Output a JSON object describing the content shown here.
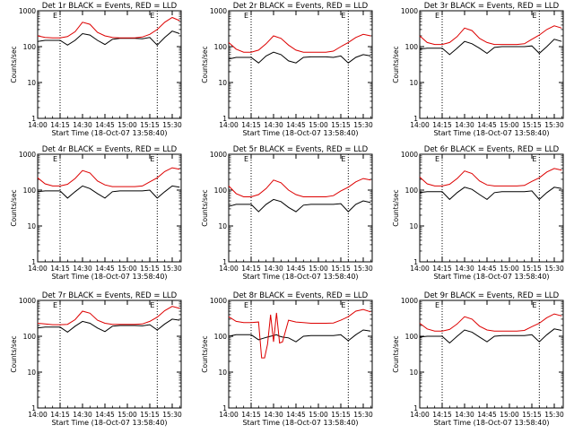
{
  "colors": {
    "events": "#000000",
    "lld": "#dd0000",
    "axes": "#000000",
    "background": "#ffffff"
  },
  "chart_data": [
    {
      "type": "line",
      "title": "Det 1r BLACK = Events, RED = LLD",
      "xlabel": "Start Time (18-Oct-07 13:58:40)",
      "ylabel": "Counts/sec",
      "yscale": "log",
      "ylim": [
        1,
        1000
      ],
      "ytick_labels": [
        "1",
        "10",
        "100",
        "1000"
      ],
      "xlim": [
        "14:00",
        "15:36"
      ],
      "xtick_labels": [
        "14:00",
        "14:15",
        "14:30",
        "14:45",
        "15:00",
        "15:15",
        "15:30"
      ],
      "markers": [
        {
          "time": "14:15",
          "label": "E"
        },
        {
          "time": "15:20",
          "label": "E"
        }
      ],
      "x": [
        "14:00",
        "14:05",
        "14:10",
        "14:15",
        "14:20",
        "14:25",
        "14:30",
        "14:35",
        "14:40",
        "14:45",
        "14:50",
        "14:55",
        "15:00",
        "15:05",
        "15:10",
        "15:15",
        "15:20",
        "15:25",
        "15:30",
        "15:35"
      ],
      "series": [
        {
          "name": "Events",
          "values": [
            140,
            150,
            150,
            150,
            110,
            150,
            230,
            210,
            150,
            115,
            160,
            170,
            170,
            170,
            165,
            180,
            110,
            180,
            270,
            230
          ]
        },
        {
          "name": "LLD",
          "values": [
            200,
            180,
            175,
            175,
            190,
            260,
            480,
            420,
            250,
            200,
            180,
            175,
            175,
            175,
            185,
            220,
            300,
            480,
            650,
            530
          ]
        }
      ]
    },
    {
      "type": "line",
      "title": "Det 2r BLACK = Events, RED = LLD",
      "xlabel": "Start Time (18-Oct-07 13:58:40)",
      "ylabel": "Counts/sec",
      "yscale": "log",
      "ylim": [
        1,
        1000
      ],
      "ytick_labels": [
        "1",
        "10",
        "100",
        "1000"
      ],
      "xlim": [
        "14:00",
        "15:36"
      ],
      "xtick_labels": [
        "14:00",
        "14:15",
        "14:30",
        "14:45",
        "15:00",
        "15:15",
        "15:30"
      ],
      "markers": [
        {
          "time": "14:15",
          "label": "E"
        },
        {
          "time": "15:20",
          "label": "E"
        }
      ],
      "x": [
        "14:00",
        "14:05",
        "14:10",
        "14:15",
        "14:20",
        "14:25",
        "14:30",
        "14:35",
        "14:40",
        "14:45",
        "14:50",
        "14:55",
        "15:00",
        "15:05",
        "15:10",
        "15:15",
        "15:20",
        "15:25",
        "15:30",
        "15:35"
      ],
      "series": [
        {
          "name": "Events",
          "values": [
            45,
            50,
            50,
            50,
            35,
            55,
            70,
            60,
            40,
            35,
            50,
            52,
            52,
            52,
            50,
            55,
            35,
            50,
            60,
            55
          ]
        },
        {
          "name": "LLD",
          "values": [
            130,
            85,
            70,
            70,
            80,
            120,
            200,
            170,
            110,
            80,
            70,
            70,
            70,
            70,
            75,
            100,
            130,
            180,
            220,
            200
          ]
        }
      ]
    },
    {
      "type": "line",
      "title": "Det 3r BLACK = Events, RED = LLD",
      "xlabel": "Start Time (18-Oct-07 13:58:40)",
      "ylabel": "Counts/sec",
      "yscale": "log",
      "ylim": [
        1,
        1000
      ],
      "ytick_labels": [
        "1",
        "10",
        "100",
        "1000"
      ],
      "xlim": [
        "14:00",
        "15:36"
      ],
      "xtick_labels": [
        "14:00",
        "14:15",
        "14:30",
        "14:45",
        "15:00",
        "15:15",
        "15:30"
      ],
      "markers": [
        {
          "time": "14:15",
          "label": "E"
        },
        {
          "time": "15:20",
          "label": "E"
        }
      ],
      "x": [
        "14:00",
        "14:05",
        "14:10",
        "14:15",
        "14:20",
        "14:25",
        "14:30",
        "14:35",
        "14:40",
        "14:45",
        "14:50",
        "14:55",
        "15:00",
        "15:05",
        "15:10",
        "15:15",
        "15:20",
        "15:25",
        "15:30",
        "15:35"
      ],
      "series": [
        {
          "name": "Events",
          "values": [
            85,
            90,
            90,
            90,
            60,
            90,
            140,
            120,
            90,
            65,
            95,
            100,
            100,
            100,
            100,
            105,
            65,
            100,
            160,
            140
          ]
        },
        {
          "name": "LLD",
          "values": [
            200,
            130,
            115,
            115,
            130,
            190,
            330,
            280,
            170,
            130,
            115,
            115,
            115,
            115,
            120,
            160,
            210,
            300,
            380,
            330
          ]
        }
      ]
    },
    {
      "type": "line",
      "title": "Det 4r BLACK = Events, RED = LLD",
      "xlabel": "Start Time (18-Oct-07 13:58:40)",
      "ylabel": "Counts/sec",
      "yscale": "log",
      "ylim": [
        1,
        1000
      ],
      "ytick_labels": [
        "1",
        "10",
        "100",
        "1000"
      ],
      "xlim": [
        "14:00",
        "15:36"
      ],
      "xtick_labels": [
        "14:00",
        "14:15",
        "14:30",
        "14:45",
        "15:00",
        "15:15",
        "15:30"
      ],
      "markers": [
        {
          "time": "14:15",
          "label": "E"
        },
        {
          "time": "15:20",
          "label": "E"
        }
      ],
      "x": [
        "14:00",
        "14:05",
        "14:10",
        "14:15",
        "14:20",
        "14:25",
        "14:30",
        "14:35",
        "14:40",
        "14:45",
        "14:50",
        "14:55",
        "15:00",
        "15:05",
        "15:10",
        "15:15",
        "15:20",
        "15:25",
        "15:30",
        "15:35"
      ],
      "series": [
        {
          "name": "Events",
          "values": [
            90,
            95,
            95,
            95,
            60,
            90,
            130,
            110,
            80,
            60,
            90,
            95,
            95,
            95,
            95,
            100,
            60,
            90,
            130,
            120
          ]
        },
        {
          "name": "LLD",
          "values": [
            220,
            150,
            130,
            130,
            145,
            210,
            350,
            300,
            180,
            140,
            125,
            125,
            125,
            125,
            130,
            170,
            220,
            330,
            420,
            380
          ]
        }
      ]
    },
    {
      "type": "line",
      "title": "Det 5r BLACK = Events, RED = LLD",
      "xlabel": "Start Time (18-Oct-07 13:58:40)",
      "ylabel": "Counts/sec",
      "yscale": "log",
      "ylim": [
        1,
        1000
      ],
      "ytick_labels": [
        "1",
        "10",
        "100",
        "1000"
      ],
      "xlim": [
        "14:00",
        "15:36"
      ],
      "xtick_labels": [
        "14:00",
        "14:15",
        "14:30",
        "14:45",
        "15:00",
        "15:15",
        "15:30"
      ],
      "markers": [
        {
          "time": "14:15",
          "label": "E"
        },
        {
          "time": "15:20",
          "label": "E"
        }
      ],
      "x": [
        "14:00",
        "14:05",
        "14:10",
        "14:15",
        "14:20",
        "14:25",
        "14:30",
        "14:35",
        "14:40",
        "14:45",
        "14:50",
        "14:55",
        "15:00",
        "15:05",
        "15:10",
        "15:15",
        "15:20",
        "15:25",
        "15:30",
        "15:35"
      ],
      "series": [
        {
          "name": "Events",
          "values": [
            35,
            40,
            40,
            40,
            25,
            40,
            55,
            48,
            33,
            25,
            38,
            40,
            40,
            40,
            40,
            42,
            25,
            40,
            50,
            45
          ]
        },
        {
          "name": "LLD",
          "values": [
            130,
            80,
            65,
            65,
            75,
            110,
            190,
            160,
            100,
            75,
            65,
            65,
            65,
            65,
            70,
            95,
            120,
            170,
            210,
            190
          ]
        }
      ]
    },
    {
      "type": "line",
      "title": "Det 6r BLACK = Events, RED = LLD",
      "xlabel": "Start Time (18-Oct-07 13:58:40)",
      "ylabel": "Counts/sec",
      "yscale": "log",
      "ylim": [
        1,
        1000
      ],
      "ytick_labels": [
        "1",
        "10",
        "100",
        "1000"
      ],
      "xlim": [
        "14:00",
        "15:36"
      ],
      "xtick_labels": [
        "14:00",
        "14:15",
        "14:30",
        "14:45",
        "15:00",
        "15:15",
        "15:30"
      ],
      "markers": [
        {
          "time": "14:15",
          "label": "E"
        },
        {
          "time": "15:20",
          "label": "E"
        }
      ],
      "x": [
        "14:00",
        "14:05",
        "14:10",
        "14:15",
        "14:20",
        "14:25",
        "14:30",
        "14:35",
        "14:40",
        "14:45",
        "14:50",
        "14:55",
        "15:00",
        "15:05",
        "15:10",
        "15:15",
        "15:20",
        "15:25",
        "15:30",
        "15:35"
      ],
      "series": [
        {
          "name": "Events",
          "values": [
            85,
            90,
            90,
            90,
            55,
            85,
            120,
            105,
            75,
            55,
            85,
            90,
            90,
            90,
            90,
            95,
            55,
            85,
            120,
            110
          ]
        },
        {
          "name": "LLD",
          "values": [
            230,
            150,
            130,
            130,
            145,
            210,
            340,
            290,
            180,
            140,
            130,
            130,
            130,
            130,
            135,
            175,
            220,
            320,
            400,
            360
          ]
        }
      ]
    },
    {
      "type": "line",
      "title": "Det 7r BLACK = Events, RED = LLD",
      "xlabel": "Start Time (18-Oct-07 13:58:40)",
      "ylabel": "Counts/sec",
      "yscale": "log",
      "ylim": [
        1,
        1000
      ],
      "ytick_labels": [
        "1",
        "10",
        "100",
        "1000"
      ],
      "xlim": [
        "14:00",
        "15:36"
      ],
      "xtick_labels": [
        "14:00",
        "14:15",
        "14:30",
        "14:45",
        "15:00",
        "15:15",
        "15:30"
      ],
      "markers": [
        {
          "time": "14:15",
          "label": "E"
        },
        {
          "time": "15:20",
          "label": "E"
        }
      ],
      "x": [
        "14:00",
        "14:05",
        "14:10",
        "14:15",
        "14:20",
        "14:25",
        "14:30",
        "14:35",
        "14:40",
        "14:45",
        "14:50",
        "14:55",
        "15:00",
        "15:05",
        "15:10",
        "15:15",
        "15:20",
        "15:25",
        "15:30",
        "15:35"
      ],
      "series": [
        {
          "name": "Events",
          "values": [
            170,
            180,
            180,
            180,
            130,
            190,
            260,
            230,
            170,
            135,
            190,
            200,
            200,
            200,
            195,
            210,
            150,
            220,
            300,
            280
          ]
        },
        {
          "name": "LLD",
          "values": [
            230,
            220,
            210,
            210,
            215,
            290,
            500,
            440,
            280,
            230,
            215,
            215,
            215,
            215,
            220,
            260,
            340,
            520,
            680,
            600
          ]
        }
      ]
    },
    {
      "type": "line",
      "title": "Det 8r BLACK = Events, RED = LLD",
      "xlabel": "Start Time (18-Oct-07 13:58:40)",
      "ylabel": "Counts/sec",
      "yscale": "log",
      "ylim": [
        1,
        1000
      ],
      "ytick_labels": [
        "1",
        "10",
        "100",
        "1000"
      ],
      "xlim": [
        "14:00",
        "15:36"
      ],
      "xtick_labels": [
        "14:00",
        "14:15",
        "14:30",
        "14:45",
        "15:00",
        "15:15",
        "15:30"
      ],
      "markers": [
        {
          "time": "14:15",
          "label": "E"
        },
        {
          "time": "15:20",
          "label": "E"
        }
      ],
      "x": [
        "14:00",
        "14:05",
        "14:10",
        "14:15",
        "14:20",
        "14:22",
        "14:24",
        "14:26",
        "14:28",
        "14:30",
        "14:32",
        "14:34",
        "14:36",
        "14:40",
        "14:45",
        "14:50",
        "14:55",
        "15:00",
        "15:05",
        "15:10",
        "15:15",
        "15:20",
        "15:25",
        "15:30",
        "15:35"
      ],
      "series": [
        {
          "name": "Events",
          "values": [
            100,
            110,
            110,
            110,
            80,
            85,
            90,
            95,
            100,
            105,
            110,
            100,
            95,
            90,
            70,
            100,
            105,
            105,
            105,
            105,
            110,
            75,
            110,
            150,
            140
          ]
        },
        {
          "name": "LLD",
          "values": [
            350,
            260,
            240,
            240,
            250,
            25,
            25,
            60,
            400,
            70,
            450,
            65,
            70,
            280,
            250,
            240,
            230,
            230,
            230,
            235,
            280,
            350,
            500,
            560,
            480
          ]
        }
      ]
    },
    {
      "type": "line",
      "title": "Det 9r BLACK = Events, RED = LLD",
      "xlabel": "Start Time (18-Oct-07 13:58:40)",
      "ylabel": "Counts/sec",
      "yscale": "log",
      "ylim": [
        1,
        1000
      ],
      "ytick_labels": [
        "1",
        "10",
        "100",
        "1000"
      ],
      "xlim": [
        "14:00",
        "15:36"
      ],
      "xtick_labels": [
        "14:00",
        "14:15",
        "14:30",
        "14:45",
        "15:00",
        "15:15",
        "15:30"
      ],
      "markers": [
        {
          "time": "14:15",
          "label": "E"
        },
        {
          "time": "15:20",
          "label": "E"
        }
      ],
      "x": [
        "14:00",
        "14:05",
        "14:10",
        "14:15",
        "14:20",
        "14:25",
        "14:30",
        "14:35",
        "14:40",
        "14:45",
        "14:50",
        "14:55",
        "15:00",
        "15:05",
        "15:10",
        "15:15",
        "15:20",
        "15:25",
        "15:30",
        "15:35"
      ],
      "series": [
        {
          "name": "Events",
          "values": [
            95,
            100,
            100,
            100,
            65,
            100,
            150,
            130,
            95,
            70,
            100,
            105,
            105,
            105,
            105,
            110,
            70,
            110,
            160,
            145
          ]
        },
        {
          "name": "LLD",
          "values": [
            230,
            160,
            140,
            140,
            155,
            220,
            350,
            300,
            190,
            150,
            140,
            140,
            140,
            140,
            145,
            185,
            230,
            330,
            420,
            370
          ]
        }
      ]
    }
  ]
}
